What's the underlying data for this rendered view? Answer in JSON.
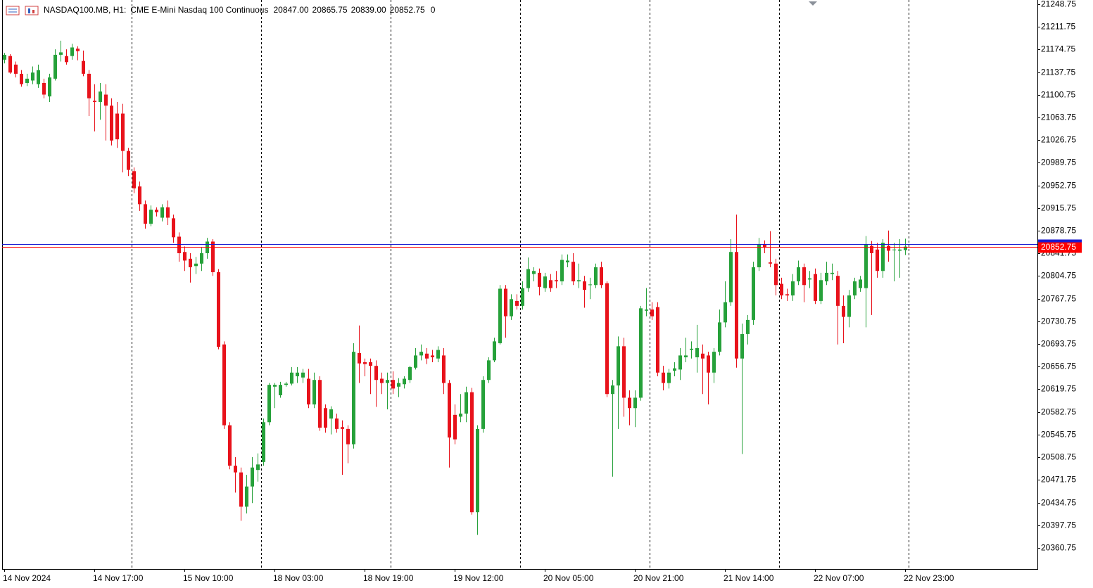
{
  "header": {
    "symbol": "NASDAQ100.MB, H1:",
    "description": "CME E-Mini Nasdaq 100 Continuous",
    "ohlc": [
      "20847.00",
      "20865.75",
      "20839.00",
      "20852.75"
    ],
    "volume": 0
  },
  "chart_data": {
    "type": "candlestick",
    "up_color": "#26a13a",
    "down_color": "#e8121b",
    "bid": 20852.75,
    "bid_color": "#ff0000",
    "ask": 20856.5,
    "ask_color": "#1a1ad0",
    "grid": true,
    "ylim": [
      20326.25,
      21255.5
    ],
    "yticks": [
      21248.75,
      21211.75,
      21174.75,
      21137.75,
      21100.75,
      21063.75,
      21026.75,
      20989.75,
      20952.75,
      20915.75,
      20878.75,
      20841.75,
      20804.75,
      20767.75,
      20730.75,
      20693.75,
      20656.75,
      20619.75,
      20582.75,
      20545.75,
      20508.75,
      20471.75,
      20434.75,
      20397.75,
      20360.75
    ],
    "categories": [
      "14 Nov 2024",
      null,
      null,
      null,
      null,
      null,
      null,
      null,
      null,
      null,
      null,
      null,
      null,
      null,
      null,
      null,
      "14 Nov 17:00",
      null,
      null,
      null,
      null,
      null,
      null,
      null,
      null,
      null,
      null,
      null,
      null,
      null,
      null,
      null,
      "15 Nov 10:00",
      null,
      null,
      null,
      null,
      null,
      null,
      null,
      null,
      null,
      null,
      null,
      null,
      null,
      null,
      null,
      "18 Nov 03:00",
      null,
      null,
      null,
      null,
      null,
      null,
      null,
      null,
      null,
      null,
      null,
      null,
      null,
      null,
      null,
      "18 Nov 19:00",
      null,
      null,
      null,
      null,
      null,
      null,
      null,
      null,
      null,
      null,
      null,
      null,
      null,
      null,
      null,
      "19 Nov 12:00",
      null,
      null,
      null,
      null,
      null,
      null,
      null,
      null,
      null,
      null,
      null,
      null,
      null,
      null,
      null,
      "20 Nov 05:00",
      null,
      null,
      null,
      null,
      null,
      null,
      null,
      null,
      null,
      null,
      null,
      null,
      null,
      null,
      null,
      "20 Nov 21:00",
      null,
      null,
      null,
      null,
      null,
      null,
      null,
      null,
      null,
      null,
      null,
      null,
      null,
      null,
      null,
      "21 Nov 14:00",
      null,
      null,
      null,
      null,
      null,
      null,
      null,
      null,
      null,
      null,
      null,
      null,
      null,
      null,
      null,
      "22 Nov 07:00",
      null,
      null,
      null,
      null,
      null,
      null,
      null,
      null,
      null,
      null,
      null,
      null,
      null,
      null,
      null,
      "22 Nov 23:00"
    ],
    "open": [
      21158,
      21164,
      21150,
      21135,
      21120,
      21124,
      21118,
      21120,
      21098,
      21127,
      21166,
      21164,
      21164,
      21176,
      21156,
      21135,
      21091,
      21089,
      21101,
      21083,
      21070,
      21070,
      21009,
      20976,
      20951,
      20922,
      20890,
      20913,
      20900,
      20917,
      20899,
      20869,
      20844,
      20833,
      20821,
      20825,
      20842,
      20861,
      20811,
      20693,
      20561,
      20495,
      20484,
      20428,
      20461,
      20488,
      20501,
      20566,
      20624,
      20610,
      20627,
      20629,
      20641,
      20639,
      20637,
      20595,
      20635,
      20589,
      20572,
      20572,
      20558,
      20555,
      20530,
      20679,
      20664,
      20664,
      20658,
      20637,
      20630,
      20635,
      20624,
      20628,
      20635,
      20655,
      20675,
      20678,
      20675,
      20670,
      20675,
      20630,
      20578,
      20575,
      20580,
      20615,
      20419,
      20555,
      20635,
      20667,
      20695,
      20784,
      20739,
      20764,
      20756,
      20785,
      20808,
      20810,
      20785,
      20798,
      20798,
      20796,
      20827,
      20828,
      20796,
      20796,
      20790,
      20790,
      20819,
      20793,
      20612,
      20626,
      20690,
      20606,
      20589,
      20606,
      20748,
      20750,
      20754,
      20647,
      20630,
      20650,
      20652,
      20672,
      20684,
      20672,
      20678,
      20675,
      20647,
      20681,
      20729,
      20762,
      20844,
      20670,
      20710,
      20733,
      20819,
      20856,
      20827,
      20825,
      20792,
      20775,
      20773,
      20796,
      20819,
      20799,
      20808,
      20764,
      20796,
      20808,
      20805,
      20756,
      20738,
      20773,
      20785,
      20785,
      20854,
      20848,
      20813,
      20854,
      20847,
      20846,
      20847
    ],
    "high": [
      21169,
      21167,
      21155,
      21141,
      21135,
      21147,
      21150,
      21127,
      21135,
      21175,
      21189,
      21175,
      21184,
      21180,
      21173,
      21141,
      21118,
      21120,
      21118,
      21095,
      21089,
      21086,
      21014,
      20982,
      20959,
      20928,
      20920,
      20917,
      20922,
      20928,
      20905,
      20876,
      20853,
      20842,
      20836,
      20851,
      20867,
      20865,
      20816,
      20698,
      20566,
      20509,
      20492,
      20480,
      20509,
      20515,
      20572,
      20630,
      20630,
      20632,
      20632,
      20656,
      20656,
      20653,
      20653,
      20647,
      20641,
      20595,
      20592,
      20580,
      20569,
      20561,
      20695,
      20724,
      20670,
      20670,
      20667,
      20647,
      20647,
      20649,
      20638,
      20641,
      20658,
      20687,
      20693,
      20687,
      20684,
      20690,
      20687,
      20635,
      20595,
      20612,
      20624,
      20622,
      20561,
      20641,
      20672,
      20704,
      20790,
      20790,
      20775,
      20775,
      20796,
      20835,
      20819,
      20817,
      20810,
      20808,
      20813,
      20840,
      20840,
      20842,
      20825,
      20805,
      20802,
      20825,
      20828,
      20796,
      20635,
      20706,
      20704,
      20618,
      20618,
      20756,
      20785,
      20762,
      20762,
      20658,
      20653,
      20664,
      20687,
      20704,
      20698,
      20725,
      20693,
      20681,
      20687,
      20750,
      20796,
      20865,
      20905,
      20727,
      20741,
      20828,
      20867,
      20863,
      20878,
      20833,
      20802,
      20784,
      20808,
      20830,
      20825,
      20813,
      20817,
      20810,
      20828,
      20825,
      20813,
      20773,
      20782,
      20802,
      20805,
      20870,
      20862,
      20859,
      20865,
      20879,
      20859,
      20865,
      20865.75
    ],
    "low": [
      21152,
      21135,
      21129,
      21114,
      21115,
      21118,
      21112,
      21095,
      21089,
      21124,
      21155,
      21150,
      21158,
      21157,
      21131,
      21066,
      21041,
      21060,
      21026,
      21018,
      21014,
      20974,
      20968,
      20940,
      20911,
      20882,
      20886,
      20902,
      20894,
      20888,
      20859,
      20828,
      20813,
      20794,
      20808,
      20813,
      20833,
      20805,
      20685,
      20555,
      20489,
      20451,
      20405,
      20417,
      20434,
      20469,
      20495,
      20561,
      20589,
      20606,
      20624,
      20626,
      20630,
      20630,
      20589,
      20589,
      20552,
      20549,
      20546,
      20549,
      20480,
      20499,
      20523,
      20630,
      20641,
      20612,
      20591,
      20612,
      20587,
      20612,
      20607,
      20621,
      20630,
      20652,
      20667,
      20661,
      20664,
      20664,
      20612,
      20492,
      20530,
      20566,
      20566,
      20415,
      20382,
      20549,
      20630,
      20664,
      20693,
      20704,
      20733,
      20750,
      20750,
      20779,
      20796,
      20773,
      20779,
      20779,
      20785,
      20790,
      20819,
      20790,
      20785,
      20753,
      20767,
      20785,
      20785,
      20607,
      20477,
      20555,
      20575,
      20561,
      20558,
      20601,
      20739,
      20733,
      20641,
      20618,
      20621,
      20641,
      20635,
      20664,
      20670,
      20647,
      20612,
      20595,
      20630,
      20675,
      20721,
      20756,
      20655,
      20514,
      20693,
      20725,
      20813,
      20842,
      20819,
      20773,
      20767,
      20764,
      20764,
      20790,
      20762,
      20785,
      20759,
      20759,
      20790,
      20798,
      20693,
      20695,
      20721,
      20767,
      20779,
      20721,
      20741,
      20802,
      20802,
      20828,
      20796,
      20802,
      20839
    ],
    "close": [
      21166,
      21137,
      21135,
      21118,
      21127,
      21137,
      21141,
      21101,
      21129,
      21166,
      21170,
      21154,
      21178,
      21172,
      21135,
      21095,
      21089,
      21106,
      21083,
      21026,
      21028,
      21009,
      20978,
      20948,
      20922,
      20890,
      20913,
      20909,
      20917,
      20900,
      20868,
      20842,
      20830,
      20819,
      20825,
      20842,
      20861,
      20811,
      20689,
      20561,
      20495,
      20484,
      20428,
      20461,
      20492,
      20497,
      20566,
      20627,
      20627,
      20627,
      20629,
      20647,
      20647,
      20647,
      20595,
      20635,
      20557,
      20557,
      20587,
      20555,
      20555,
      20530,
      20681,
      20662,
      20661,
      20658,
      20635,
      20630,
      20635,
      20621,
      20630,
      20637,
      20656,
      20675,
      20681,
      20670,
      20672,
      20684,
      20630,
      20541,
      20538,
      20580,
      20615,
      20419,
      20555,
      20635,
      20667,
      20698,
      20784,
      20739,
      20767,
      20756,
      20785,
      20816,
      20813,
      20787,
      20804,
      20785,
      20796,
      20831,
      20830,
      20796,
      20798,
      20782,
      20791,
      20819,
      20790,
      20612,
      20626,
      20690,
      20606,
      20589,
      20606,
      20752,
      20750,
      20739,
      20647,
      20630,
      20647,
      20654,
      20675,
      20675,
      20686,
      20687,
      20670,
      20647,
      20681,
      20729,
      20762,
      20844,
      20670,
      20710,
      20733,
      20819,
      20856,
      20851,
      20825,
      20790,
      20773,
      20773,
      20796,
      20819,
      20790,
      20801,
      20764,
      20798,
      20810,
      20810,
      20756,
      20738,
      20773,
      20796,
      20799,
      20856,
      20842,
      20813,
      20859,
      20846,
      20848,
      20848,
      20852.75
    ]
  }
}
